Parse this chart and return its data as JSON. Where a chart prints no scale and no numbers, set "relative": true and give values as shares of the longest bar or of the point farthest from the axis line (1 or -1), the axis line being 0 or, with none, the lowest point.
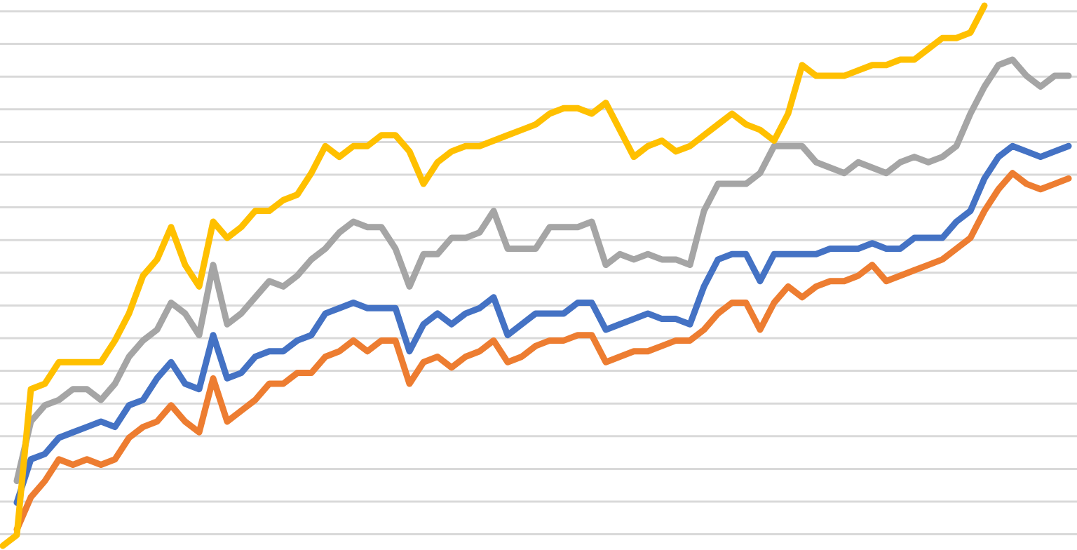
{
  "chart_data": {
    "type": "line",
    "relative": true,
    "grid": "y",
    "categories": [
      null,
      null,
      null,
      null,
      null,
      null,
      null,
      null,
      null,
      null,
      null,
      null,
      null,
      null,
      null,
      null,
      null,
      null,
      null,
      null,
      null,
      null,
      null,
      null,
      null,
      null,
      null,
      null,
      null,
      null,
      null,
      null,
      null,
      null,
      null,
      null,
      null,
      null,
      null,
      null,
      null,
      null,
      null,
      null,
      null,
      null,
      null,
      null,
      null,
      null,
      null,
      null,
      null,
      null,
      null,
      null,
      null,
      null,
      null,
      null,
      null,
      null,
      null,
      null,
      null,
      null,
      null,
      null,
      null,
      null,
      null,
      null,
      null,
      null,
      null,
      null,
      null
    ],
    "series": [
      {
        "color": "#ed7d31",
        "values": [
          null,
          0.03,
          0.09,
          0.12,
          0.16,
          0.15,
          0.16,
          0.15,
          0.16,
          0.2,
          0.22,
          0.23,
          0.26,
          0.23,
          0.21,
          0.31,
          0.23,
          0.25,
          0.27,
          0.3,
          0.3,
          0.32,
          0.32,
          0.35,
          0.36,
          0.38,
          0.36,
          0.38,
          0.38,
          0.3,
          0.34,
          0.35,
          0.33,
          0.35,
          0.36,
          0.38,
          0.34,
          0.35,
          0.37,
          0.38,
          0.38,
          0.39,
          0.39,
          0.34,
          0.35,
          0.36,
          0.36,
          0.37,
          0.38,
          0.38,
          0.4,
          0.43,
          0.45,
          0.45,
          0.4,
          0.45,
          0.48,
          0.46,
          0.48,
          0.49,
          0.49,
          0.5,
          0.52,
          0.49,
          0.5,
          0.51,
          0.52,
          0.53,
          0.55,
          0.57,
          0.62,
          0.66,
          0.69,
          0.67,
          0.66,
          0.67,
          0.68
        ]
      },
      {
        "color": "#4472c4",
        "values": [
          null,
          0.08,
          0.16,
          0.17,
          0.2,
          0.21,
          0.22,
          0.23,
          0.22,
          0.26,
          0.27,
          0.31,
          0.34,
          0.3,
          0.29,
          0.39,
          0.31,
          0.32,
          0.35,
          0.36,
          0.36,
          0.38,
          0.39,
          0.43,
          0.44,
          0.45,
          0.44,
          0.44,
          0.44,
          0.36,
          0.41,
          0.43,
          0.41,
          0.43,
          0.44,
          0.46,
          0.39,
          0.41,
          0.43,
          0.43,
          0.43,
          0.45,
          0.45,
          0.4,
          0.41,
          0.42,
          0.43,
          0.42,
          0.42,
          0.41,
          0.48,
          0.53,
          0.54,
          0.54,
          0.49,
          0.54,
          0.54,
          0.54,
          0.54,
          0.55,
          0.55,
          0.55,
          0.56,
          0.55,
          0.55,
          0.57,
          0.57,
          0.57,
          0.6,
          0.62,
          0.68,
          0.72,
          0.74,
          0.73,
          0.72,
          0.73,
          0.74
        ]
      },
      {
        "color": "#a5a5a5",
        "values": [
          null,
          0.12,
          0.23,
          0.26,
          0.27,
          0.29,
          0.29,
          0.27,
          0.3,
          0.35,
          0.38,
          0.4,
          0.45,
          0.43,
          0.39,
          0.52,
          0.41,
          0.43,
          0.46,
          0.49,
          0.48,
          0.5,
          0.53,
          0.55,
          0.58,
          0.6,
          0.59,
          0.59,
          0.55,
          0.48,
          0.54,
          0.54,
          0.57,
          0.57,
          0.58,
          0.62,
          0.55,
          0.55,
          0.55,
          0.59,
          0.59,
          0.59,
          0.6,
          0.52,
          0.54,
          0.53,
          0.54,
          0.53,
          0.53,
          0.52,
          0.62,
          0.67,
          0.67,
          0.67,
          0.69,
          0.74,
          0.74,
          0.74,
          0.71,
          0.7,
          0.69,
          0.71,
          0.7,
          0.69,
          0.71,
          0.72,
          0.71,
          0.72,
          0.74,
          0.8,
          0.85,
          0.89,
          0.9,
          0.87,
          0.85,
          0.87,
          0.87
        ]
      },
      {
        "color": "#ffc000",
        "values": [
          0,
          0.02,
          0.29,
          0.3,
          0.34,
          0.34,
          0.34,
          0.34,
          0.38,
          0.43,
          0.5,
          0.53,
          0.59,
          0.52,
          0.48,
          0.6,
          0.57,
          0.59,
          0.62,
          0.62,
          0.64,
          0.65,
          0.69,
          0.74,
          0.72,
          0.74,
          0.74,
          0.76,
          0.76,
          0.73,
          0.67,
          0.71,
          0.73,
          0.74,
          0.74,
          0.75,
          0.76,
          0.77,
          0.78,
          0.8,
          0.81,
          0.81,
          0.8,
          0.82,
          0.77,
          0.72,
          0.74,
          0.75,
          0.73,
          0.74,
          0.76,
          0.78,
          0.8,
          0.78,
          0.77,
          0.75,
          0.8,
          0.89,
          0.87,
          0.87,
          0.87,
          0.88,
          0.89,
          0.89,
          0.9,
          0.9,
          0.92,
          0.94,
          0.94,
          0.95,
          1,
          null,
          null,
          null,
          null,
          null,
          null
        ]
      }
    ]
  }
}
